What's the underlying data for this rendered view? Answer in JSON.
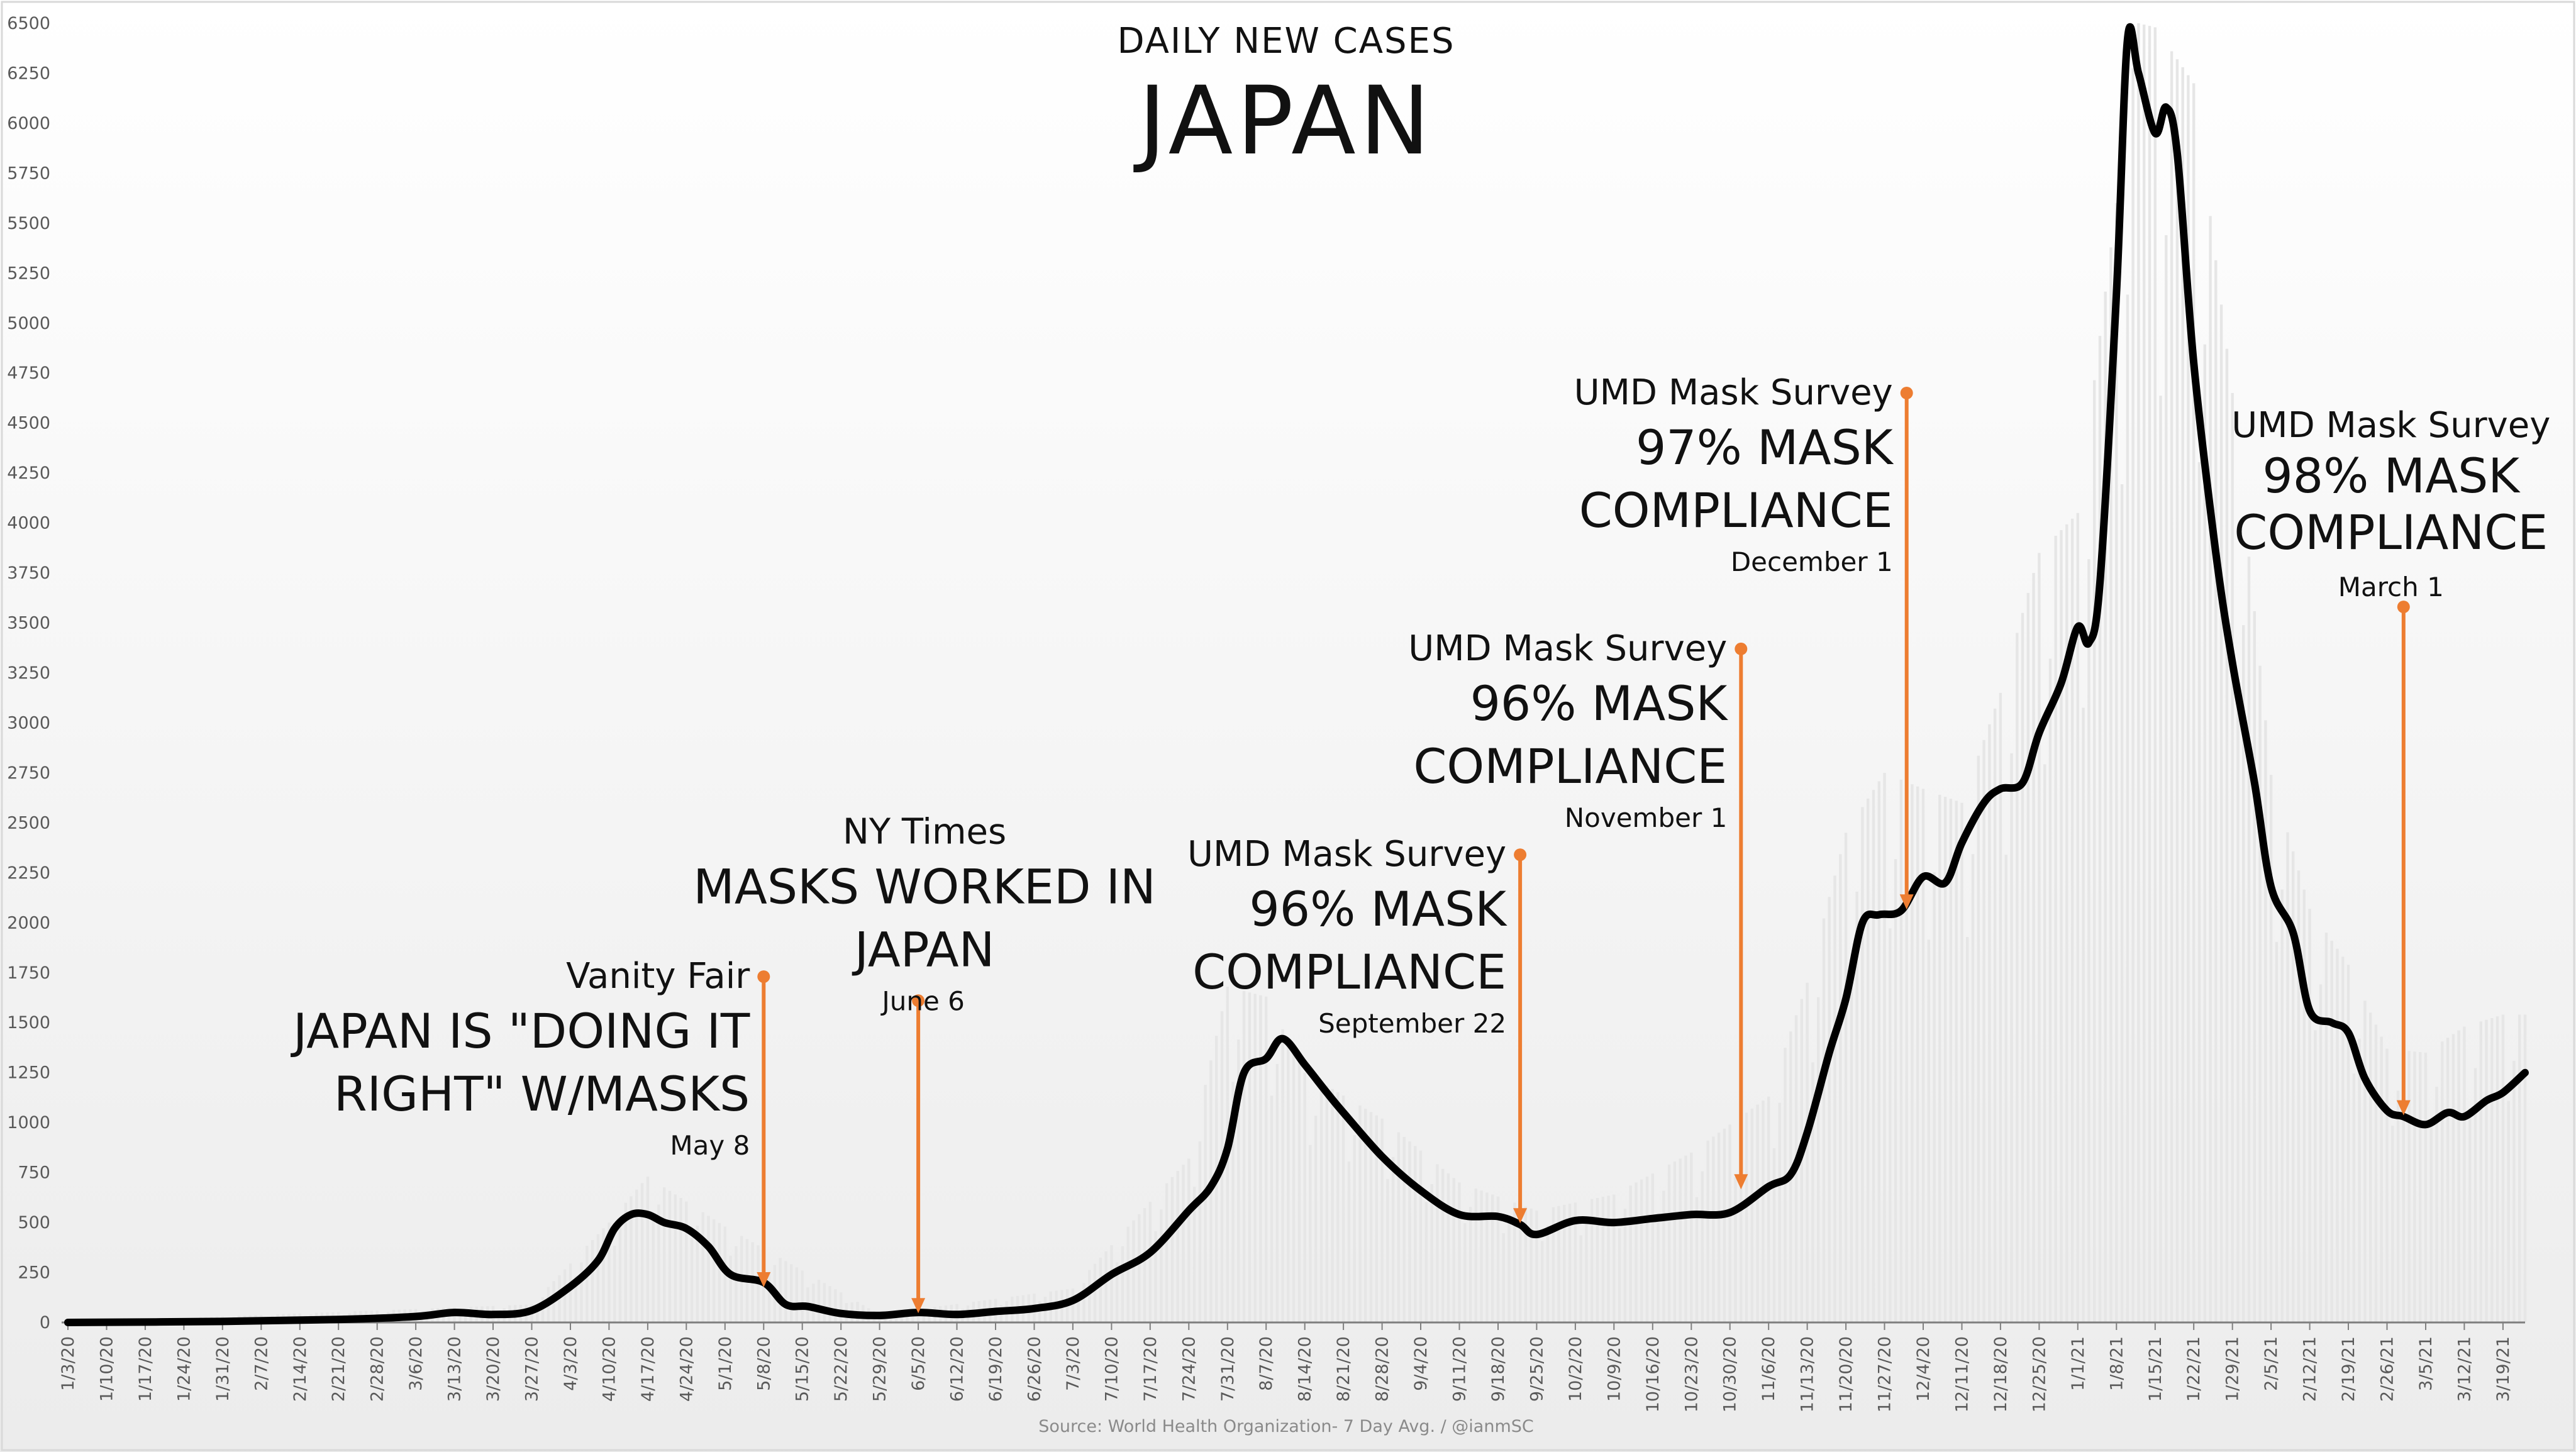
{
  "chart_data": {
    "type": "line",
    "title": "DAILY NEW CASES",
    "subtitle": "JAPAN",
    "source": "Source: World Health Organization- 7 Day Avg. / @ianmSC",
    "ylim": [
      0,
      6500
    ],
    "yticks": [
      "0",
      "250",
      "500",
      "750",
      "1000",
      "1250",
      "1500",
      "1750",
      "2000",
      "2250",
      "2500",
      "2750",
      "3000",
      "3250",
      "3500",
      "3750",
      "4000",
      "4250",
      "4500",
      "4750",
      "5000",
      "5250",
      "5500",
      "5750",
      "6000",
      "6250",
      "6500"
    ],
    "xticks": [
      "1/3/20",
      "1/10/20",
      "1/17/20",
      "1/24/20",
      "1/31/20",
      "2/7/20",
      "2/14/20",
      "2/21/20",
      "2/28/20",
      "3/6/20",
      "3/13/20",
      "3/20/20",
      "3/27/20",
      "4/3/20",
      "4/10/20",
      "4/17/20",
      "4/24/20",
      "5/1/20",
      "5/8/20",
      "5/15/20",
      "5/22/20",
      "5/29/20",
      "6/5/20",
      "6/12/20",
      "6/19/20",
      "6/26/20",
      "7/3/20",
      "7/10/20",
      "7/17/20",
      "7/24/20",
      "7/31/20",
      "8/7/20",
      "8/14/20",
      "8/21/20",
      "8/28/20",
      "9/4/20",
      "9/11/20",
      "9/18/20",
      "9/25/20",
      "10/2/20",
      "10/9/20",
      "10/16/20",
      "10/23/20",
      "10/30/20",
      "11/6/20",
      "11/13/20",
      "11/20/20",
      "11/27/20",
      "12/4/20",
      "12/11/20",
      "12/18/20",
      "12/25/20",
      "1/1/21",
      "1/8/21",
      "1/15/21",
      "1/22/21",
      "1/29/21",
      "2/5/21",
      "2/12/21",
      "2/19/21",
      "2/26/21",
      "3/5/21",
      "3/12/21",
      "3/19/21"
    ],
    "grid": false,
    "legend": "none",
    "line_color": "#000000",
    "bar_color": "#e6e6e6",
    "annotation_color": "#ed7d31",
    "series": [
      {
        "kind": "line",
        "x": [
          "1/3/20",
          "1/31/20",
          "2/21/20",
          "3/6/20",
          "3/13/20",
          "3/20/20",
          "3/27/20",
          "4/3/20",
          "4/8/20",
          "4/11/20",
          "4/14/20",
          "4/17/20",
          "4/20/20",
          "4/24/20",
          "4/28/20",
          "5/2/20",
          "5/8/20",
          "5/12/20",
          "5/16/20",
          "5/22/20",
          "5/29/20",
          "6/5/20",
          "6/12/20",
          "6/19/20",
          "6/26/20",
          "7/3/20",
          "7/10/20",
          "7/17/20",
          "7/24/20",
          "7/28/20",
          "7/31/20",
          "8/3/20",
          "8/7/20",
          "8/10/20",
          "8/14/20",
          "8/18/20",
          "8/21/20",
          "8/28/20",
          "9/4/20",
          "9/11/20",
          "9/18/20",
          "9/22/20",
          "9/25/20",
          "10/2/20",
          "10/9/20",
          "10/16/20",
          "10/23/20",
          "10/30/20",
          "11/6/20",
          "11/10/20",
          "11/13/20",
          "11/17/20",
          "11/20/20",
          "11/23/20",
          "11/26/20",
          "11/30/20",
          "12/4/20",
          "12/8/20",
          "12/11/20",
          "12/15/20",
          "12/18/20",
          "12/22/20",
          "12/25/20",
          "12/29/20",
          "1/1/21",
          "1/3/21",
          "1/5/21",
          "1/8/21",
          "1/10/21",
          "1/12/21",
          "1/15/21",
          "1/17/21",
          "1/19/21",
          "1/22/21",
          "1/26/21",
          "1/29/21",
          "2/2/21",
          "2/5/21",
          "2/9/21",
          "2/12/21",
          "2/16/21",
          "2/19/21",
          "2/22/21",
          "2/26/21",
          "3/1/21",
          "3/5/21",
          "3/9/21",
          "3/12/21",
          "3/16/21",
          "3/19/21",
          "3/23/21"
        ],
        "values": [
          0,
          5,
          15,
          30,
          50,
          40,
          60,
          180,
          310,
          470,
          540,
          540,
          500,
          470,
          380,
          240,
          200,
          90,
          80,
          45,
          35,
          50,
          40,
          55,
          70,
          110,
          240,
          350,
          560,
          680,
          870,
          1250,
          1320,
          1420,
          1290,
          1150,
          1050,
          830,
          660,
          540,
          530,
          490,
          440,
          510,
          500,
          520,
          540,
          550,
          680,
          740,
          950,
          1350,
          1620,
          2000,
          2040,
          2060,
          2230,
          2200,
          2400,
          2600,
          2670,
          2700,
          2950,
          3200,
          3480,
          3400,
          3700,
          5150,
          6420,
          6250,
          5950,
          6080,
          5850,
          4800,
          3850,
          3300,
          2700,
          2180,
          1950,
          1560,
          1500,
          1450,
          1220,
          1060,
          1030,
          990,
          1050,
          1030,
          1110,
          1150,
          1250
        ]
      },
      {
        "kind": "bars",
        "x": [
          "1/3/20",
          "3/27/20",
          "4/10/20",
          "4/17/20",
          "5/1/20",
          "5/29/20",
          "7/3/20",
          "7/24/20",
          "7/31/20",
          "8/7/20",
          "8/14/20",
          "8/28/20",
          "9/11/20",
          "9/25/20",
          "10/9/20",
          "10/23/20",
          "11/6/20",
          "11/13/20",
          "11/20/20",
          "11/27/20",
          "12/4/20",
          "12/11/20",
          "12/18/20",
          "12/25/20",
          "1/1/21",
          "1/8/21",
          "1/12/21",
          "1/15/21",
          "1/22/21",
          "1/29/21",
          "2/5/21",
          "2/12/21",
          "2/19/21",
          "2/26/21",
          "3/5/21",
          "3/12/21",
          "3/19/21"
        ],
        "values": [
          0,
          90,
          500,
          730,
          480,
          40,
          170,
          820,
          1680,
          1630,
          1250,
          1020,
          700,
          560,
          640,
          850,
          1130,
          1700,
          2450,
          2750,
          2670,
          2600,
          3150,
          3850,
          4050,
          5600,
          6500,
          6480,
          6200,
          4650,
          2740,
          2070,
          1790,
          1370,
          1350,
          1480,
          1540
        ]
      }
    ],
    "annotations": [
      {
        "x": "5/8/20",
        "y_top": 1730,
        "y_bottom": 170,
        "source": "Vanity Fair",
        "headline": [
          "JAPAN IS \"DOING IT",
          "RIGHT\" W/MASKS"
        ],
        "date": "May 8"
      },
      {
        "x": "6/5/20",
        "y_top": 1610,
        "y_bottom": 40,
        "source": "NY Times",
        "headline": [
          "MASKS WORKED IN",
          "JAPAN"
        ],
        "date": "June 6"
      },
      {
        "x": "9/22/20",
        "y_top": 2340,
        "y_bottom": 490,
        "source": "UMD Mask Survey",
        "headline": [
          "96% MASK",
          "COMPLIANCE"
        ],
        "date": "September 22"
      },
      {
        "x": "11/1/20",
        "y_top": 3370,
        "y_bottom": 660,
        "source": "UMD Mask Survey",
        "headline": [
          "96% MASK",
          "COMPLIANCE"
        ],
        "date": "November 1"
      },
      {
        "x": "12/1/20",
        "y_top": 4650,
        "y_bottom": 2060,
        "source": "UMD Mask Survey",
        "headline": [
          "97% MASK",
          "COMPLIANCE"
        ],
        "date": "December 1"
      },
      {
        "x": "3/1/21",
        "y_top": 3580,
        "y_bottom": 1030,
        "source": "UMD Mask Survey",
        "headline": [
          "98% MASK",
          "COMPLIANCE"
        ],
        "date": "March 1"
      }
    ]
  }
}
